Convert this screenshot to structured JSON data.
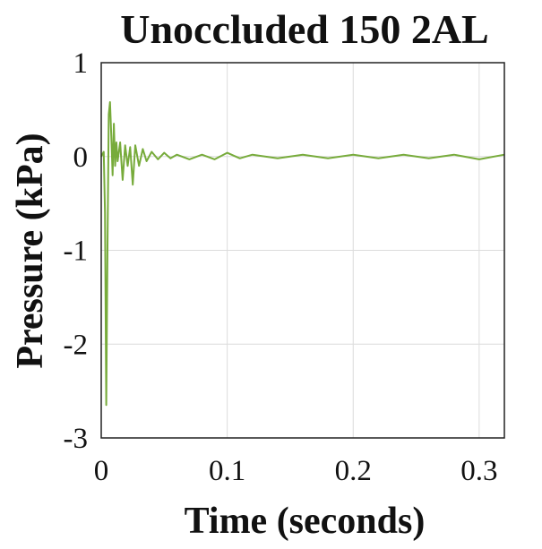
{
  "chart_data": {
    "type": "line",
    "title": "Unoccluded 150 2AL",
    "xlabel": "Time (seconds)",
    "ylabel": "Pressure (kPa)",
    "xlim": [
      0,
      0.32
    ],
    "ylim": [
      -3,
      1
    ],
    "xticks": [
      0,
      0.1,
      0.2,
      0.3
    ],
    "xtick_labels": [
      "0",
      "0.1",
      "0.2",
      "0.3"
    ],
    "yticks": [
      1,
      0,
      -1,
      -2,
      -3
    ],
    "ytick_labels": [
      "1",
      "0",
      "-1",
      "-2",
      "-3"
    ],
    "grid": true,
    "series": [
      {
        "color": "#77ab3b",
        "x": [
          0,
          0.002,
          0.003,
          0.004,
          0.005,
          0.006,
          0.007,
          0.008,
          0.009,
          0.01,
          0.011,
          0.012,
          0.013,
          0.015,
          0.017,
          0.019,
          0.021,
          0.023,
          0.025,
          0.027,
          0.03,
          0.033,
          0.036,
          0.04,
          0.045,
          0.05,
          0.055,
          0.06,
          0.07,
          0.08,
          0.09,
          0.1,
          0.11,
          0.12,
          0.14,
          0.16,
          0.18,
          0.2,
          0.22,
          0.24,
          0.26,
          0.28,
          0.3,
          0.32
        ],
        "y": [
          0,
          0.05,
          -0.6,
          -2.65,
          -0.95,
          0.45,
          0.58,
          0.2,
          -0.2,
          0.35,
          -0.1,
          0.15,
          -0.05,
          0.15,
          -0.25,
          0.12,
          -0.1,
          0.1,
          -0.3,
          0.12,
          -0.1,
          0.08,
          -0.05,
          0.05,
          -0.03,
          0.04,
          -0.02,
          0.02,
          -0.03,
          0.02,
          -0.03,
          0.04,
          -0.02,
          0.02,
          -0.02,
          0.02,
          -0.02,
          0.02,
          -0.02,
          0.02,
          -0.02,
          0.02,
          -0.03,
          0.02
        ]
      }
    ]
  }
}
